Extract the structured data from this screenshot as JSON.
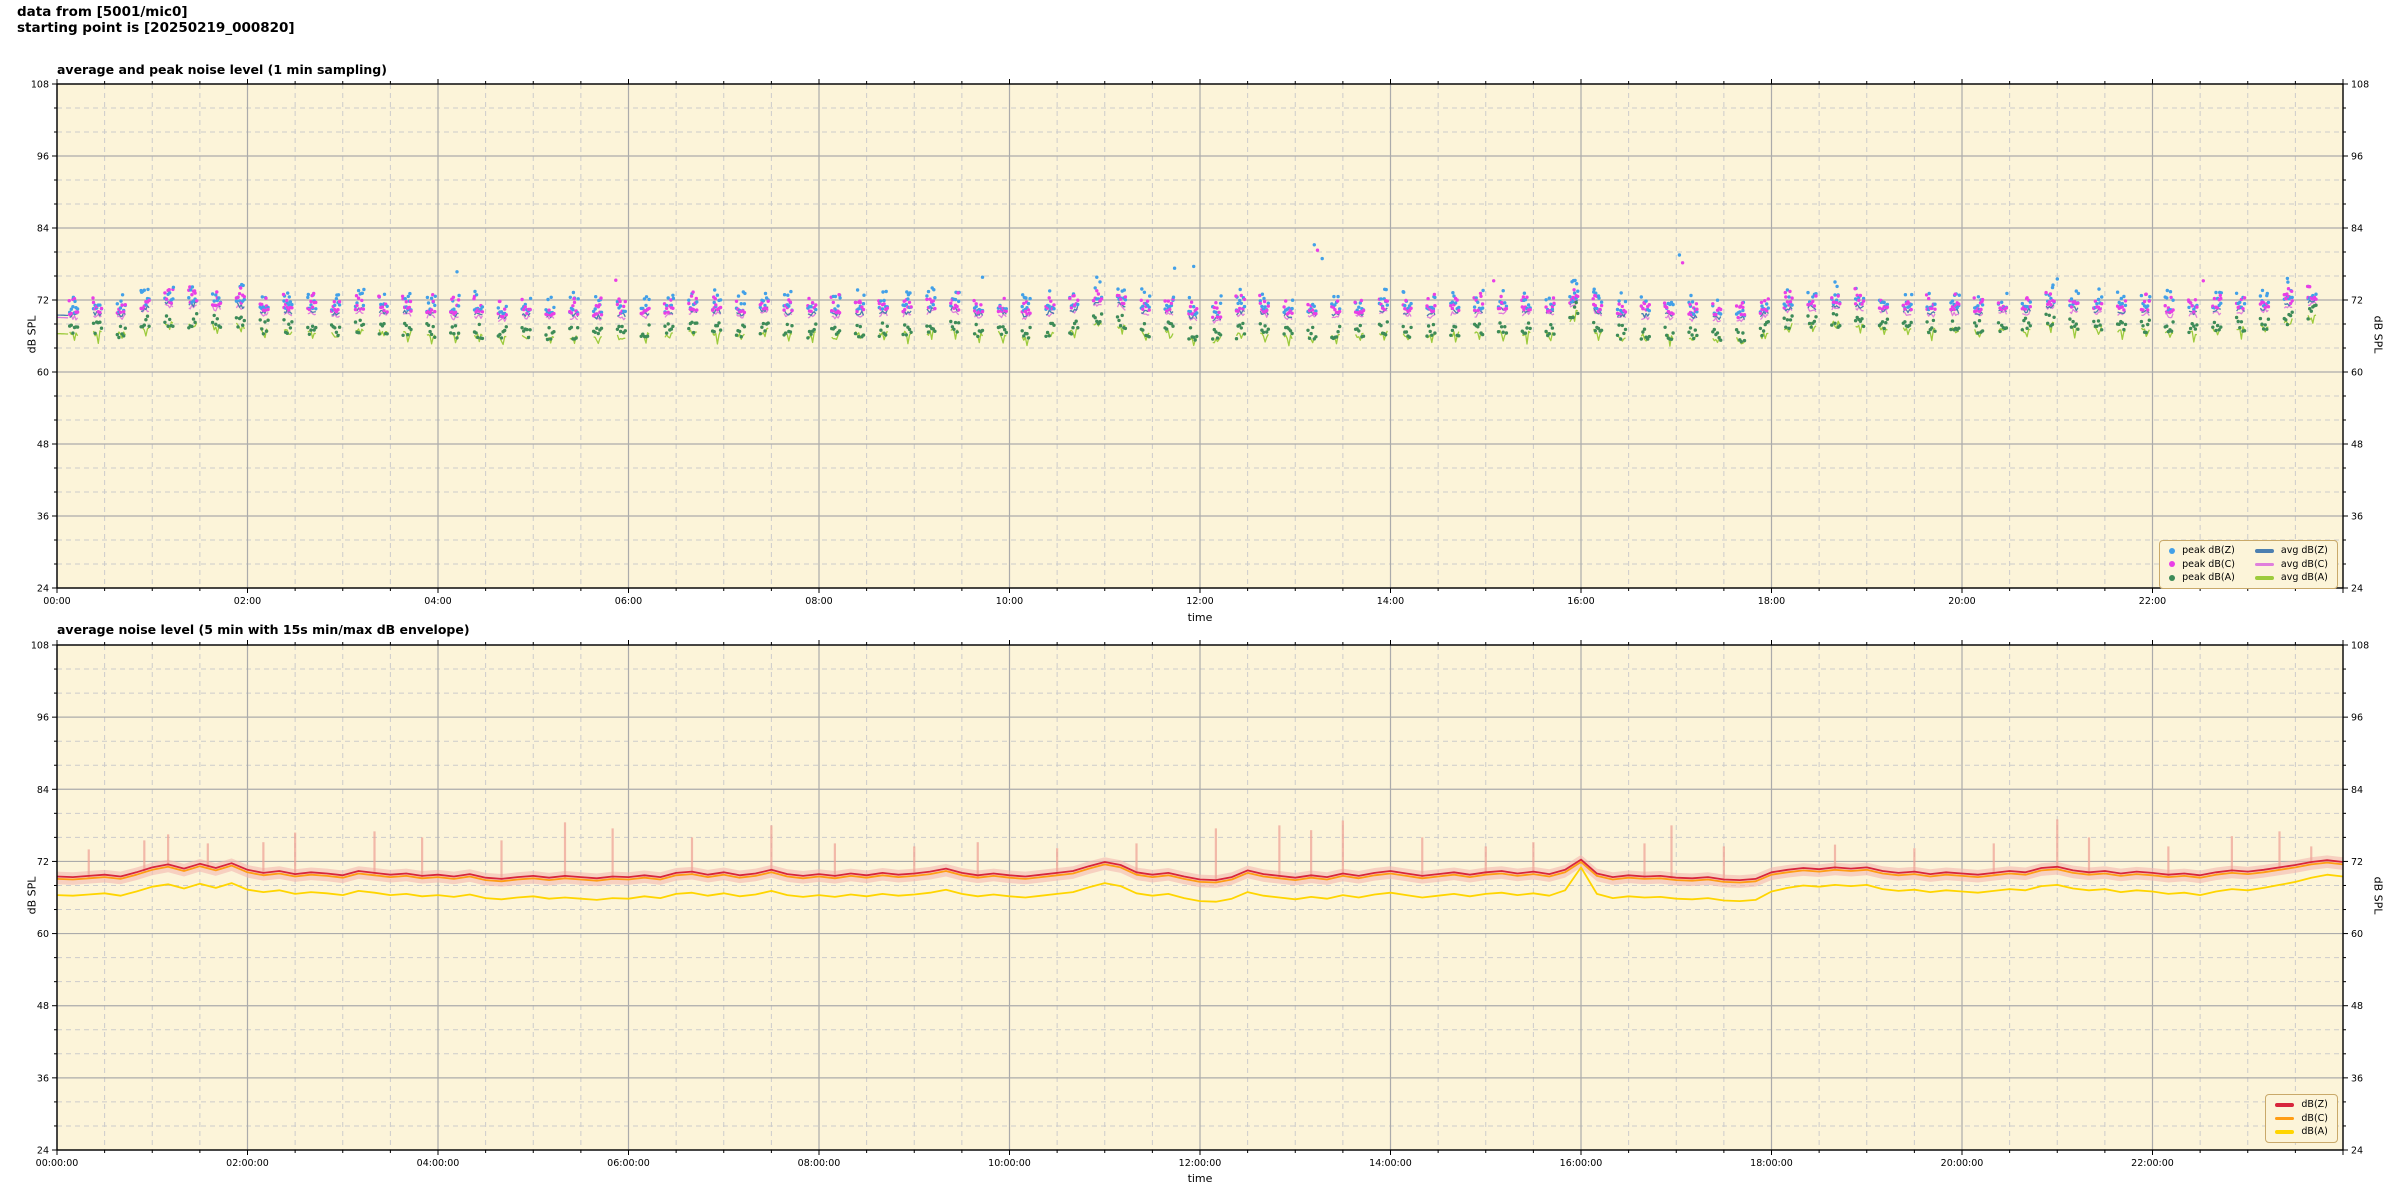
{
  "page": {
    "header_line1": "data from [5001/mic0]",
    "header_line2": "starting point is [20250219_000820]"
  },
  "style": {
    "plot_bg": "#FCF4D9",
    "grid_major": "#ABABAB",
    "grid_minor": "#CBCBCB",
    "spine": "#000000",
    "legend_bg": "#FCF4D9",
    "legend_border": "#C9A96A"
  },
  "chart_data": [
    {
      "type": "scatter",
      "title": "average and peak noise level (1 min sampling)",
      "xlabel": "time",
      "ylabel_left": "dB SPL",
      "ylabel_right": "dB SPL",
      "ylim": [
        24,
        108
      ],
      "yticks": [
        24,
        36,
        48,
        60,
        72,
        84,
        96,
        108
      ],
      "yminor_step": 4,
      "xlim_minutes": [
        0,
        1440
      ],
      "xtick_minutes": [
        0,
        120,
        240,
        360,
        480,
        600,
        720,
        840,
        960,
        1080,
        1200,
        1320
      ],
      "xticklabels": [
        "00:00",
        "02:00",
        "04:00",
        "06:00",
        "08:00",
        "10:00",
        "12:00",
        "14:00",
        "16:00",
        "18:00",
        "20:00",
        "22:00"
      ],
      "xminor_step_minutes": 30,
      "grid": true,
      "legend": {
        "position": "lower right",
        "columns": 2,
        "entries": [
          {
            "label": "peak dB(Z)",
            "marker": "dot",
            "color": "#42A0E8"
          },
          {
            "label": "peak dB(C)",
            "marker": "dot",
            "color": "#E93FE6"
          },
          {
            "label": "peak dB(A)",
            "marker": "dot",
            "color": "#3D8B58"
          },
          {
            "label": "avg dB(Z)",
            "marker": "line",
            "color": "#4C7FB0"
          },
          {
            "label": "avg dB(C)",
            "marker": "line",
            "color": "#E07FDC"
          },
          {
            "label": "avg dB(A)",
            "marker": "line",
            "color": "#9DCB3D"
          }
        ]
      },
      "sampling": {
        "cluster_start_minute": 8,
        "cluster_interval_minutes": 15,
        "samples_per_cluster": 6,
        "sample_step_minutes": 1
      },
      "peak_band_db": {
        "zc_above_avg": [
          0.3,
          3.6
        ],
        "a_about_avg": [
          -0.6,
          2.2
        ]
      },
      "peak_outliers": [
        [
          252,
          76.7,
          "Z"
        ],
        [
          352,
          75.3,
          "C"
        ],
        [
          583,
          75.8,
          "Z"
        ],
        [
          655,
          75.8,
          "Z"
        ],
        [
          704,
          77.3,
          "Z"
        ],
        [
          716,
          77.6,
          "Z"
        ],
        [
          792,
          81.2,
          "Z"
        ],
        [
          794,
          80.3,
          "C"
        ],
        [
          797,
          78.9,
          "Z"
        ],
        [
          905,
          75.2,
          "C"
        ],
        [
          1022,
          79.5,
          "Z"
        ],
        [
          1024,
          78.2,
          "C"
        ],
        [
          1120,
          75.0,
          "Z"
        ],
        [
          1260,
          75.5,
          "Z"
        ],
        [
          1352,
          75.2,
          "C"
        ],
        [
          1405,
          75.6,
          "Z"
        ]
      ]
    },
    {
      "type": "line",
      "title": "average noise level (5 min with 15s min/max dB envelope)",
      "xlabel": "time",
      "ylabel_left": "dB SPL",
      "ylabel_right": "dB SPL",
      "ylim": [
        24,
        108
      ],
      "yticks": [
        24,
        36,
        48,
        60,
        72,
        84,
        96,
        108
      ],
      "yminor_step": 4,
      "xlim_minutes": [
        0,
        1440
      ],
      "xtick_minutes": [
        0,
        120,
        240,
        360,
        480,
        600,
        720,
        840,
        960,
        1080,
        1200,
        1320
      ],
      "xticklabels": [
        "00:00:00",
        "02:00:00",
        "04:00:00",
        "06:00:00",
        "08:00:00",
        "10:00:00",
        "12:00:00",
        "14:00:00",
        "16:00:00",
        "18:00:00",
        "20:00:00",
        "22:00:00"
      ],
      "xminor_step_minutes": 30,
      "grid": true,
      "sample_step_minutes": 10,
      "legend": {
        "position": "lower right",
        "columns": 1,
        "entries": [
          {
            "label": "dB(Z)",
            "marker": "line",
            "color": "#D7263D"
          },
          {
            "label": "dB(C)",
            "marker": "line",
            "color": "#FF9D14"
          },
          {
            "label": "dB(A)",
            "marker": "line",
            "color": "#FFD500"
          }
        ]
      },
      "series": [
        {
          "name": "dB(Z)",
          "color": "#D7263D",
          "values": [
            69.5,
            69.4,
            69.6,
            69.8,
            69.5,
            70.2,
            71.0,
            71.5,
            70.8,
            71.6,
            70.9,
            71.7,
            70.6,
            70.1,
            70.4,
            69.9,
            70.2,
            70.0,
            69.7,
            70.4,
            70.1,
            69.8,
            70.0,
            69.6,
            69.8,
            69.5,
            69.9,
            69.3,
            69.1,
            69.4,
            69.6,
            69.3,
            69.6,
            69.4,
            69.2,
            69.5,
            69.4,
            69.7,
            69.4,
            70.1,
            70.3,
            69.8,
            70.2,
            69.7,
            70.0,
            70.6,
            69.9,
            69.6,
            69.9,
            69.6,
            70.0,
            69.7,
            70.1,
            69.8,
            70.0,
            70.3,
            70.8,
            70.1,
            69.7,
            70.0,
            69.7,
            69.5,
            69.8,
            70.1,
            70.4,
            71.2,
            71.9,
            71.4,
            70.2,
            69.8,
            70.1,
            69.5,
            69.0,
            68.9,
            69.4,
            70.5,
            69.9,
            69.6,
            69.3,
            69.7,
            69.4,
            70.0,
            69.6,
            70.1,
            70.4,
            70.0,
            69.6,
            69.9,
            70.2,
            69.8,
            70.2,
            70.4,
            70.0,
            70.3,
            69.9,
            70.6,
            72.3,
            70.0,
            69.4,
            69.7,
            69.5,
            69.6,
            69.3,
            69.2,
            69.4,
            69.0,
            68.9,
            69.1,
            70.2,
            70.6,
            70.9,
            70.7,
            71.0,
            70.8,
            71.0,
            70.4,
            70.1,
            70.3,
            69.9,
            70.2,
            70.0,
            69.8,
            70.1,
            70.4,
            70.2,
            70.9,
            71.1,
            70.5,
            70.2,
            70.4,
            70.0,
            70.3,
            70.1,
            69.8,
            70.0,
            69.7,
            70.2,
            70.5,
            70.3,
            70.6,
            71.0,
            71.4,
            71.9,
            72.2,
            71.9
          ]
        },
        {
          "name": "dB(C)",
          "color": "#FF9D14",
          "values": [
            69.1,
            69.0,
            69.2,
            69.4,
            69.1,
            69.8,
            70.6,
            71.1,
            70.4,
            71.2,
            70.5,
            71.3,
            70.2,
            69.7,
            70.0,
            69.5,
            69.8,
            69.6,
            69.3,
            70.0,
            69.7,
            69.4,
            69.6,
            69.2,
            69.4,
            69.1,
            69.5,
            68.9,
            68.7,
            69.0,
            69.2,
            68.9,
            69.2,
            69.0,
            68.8,
            69.1,
            69.0,
            69.3,
            69.0,
            69.7,
            69.9,
            69.4,
            69.8,
            69.3,
            69.6,
            70.2,
            69.5,
            69.2,
            69.5,
            69.2,
            69.6,
            69.3,
            69.7,
            69.4,
            69.6,
            69.9,
            70.4,
            69.7,
            69.3,
            69.6,
            69.3,
            69.1,
            69.4,
            69.7,
            70.0,
            70.8,
            71.5,
            71.0,
            69.8,
            69.4,
            69.7,
            69.1,
            68.6,
            68.5,
            69.0,
            70.1,
            69.5,
            69.2,
            68.9,
            69.3,
            69.0,
            69.6,
            69.2,
            69.7,
            70.0,
            69.6,
            69.2,
            69.5,
            69.8,
            69.4,
            69.8,
            70.0,
            69.6,
            69.9,
            69.5,
            70.2,
            71.9,
            69.6,
            69.0,
            69.3,
            69.1,
            69.2,
            68.9,
            68.8,
            69.0,
            68.6,
            68.5,
            68.7,
            69.8,
            70.2,
            70.5,
            70.3,
            70.6,
            70.4,
            70.6,
            70.0,
            69.7,
            69.9,
            69.5,
            69.8,
            69.6,
            69.4,
            69.7,
            70.0,
            69.8,
            70.5,
            70.7,
            70.1,
            69.8,
            70.0,
            69.6,
            69.9,
            69.7,
            69.4,
            69.6,
            69.3,
            69.8,
            70.1,
            69.9,
            70.2,
            70.6,
            71.0,
            71.5,
            71.8,
            71.5
          ]
        },
        {
          "name": "dB(A)",
          "color": "#FFD500",
          "values": [
            66.4,
            66.3,
            66.5,
            66.7,
            66.3,
            67.0,
            67.8,
            68.2,
            67.5,
            68.3,
            67.6,
            68.4,
            67.3,
            66.9,
            67.2,
            66.6,
            66.9,
            66.7,
            66.4,
            67.1,
            66.8,
            66.4,
            66.6,
            66.2,
            66.4,
            66.1,
            66.5,
            65.9,
            65.7,
            66.0,
            66.2,
            65.8,
            66.0,
            65.8,
            65.6,
            65.9,
            65.8,
            66.2,
            65.9,
            66.6,
            66.8,
            66.3,
            66.7,
            66.2,
            66.5,
            67.1,
            66.4,
            66.1,
            66.4,
            66.1,
            66.5,
            66.2,
            66.6,
            66.3,
            66.5,
            66.8,
            67.3,
            66.6,
            66.2,
            66.5,
            66.2,
            66.0,
            66.3,
            66.6,
            66.9,
            67.7,
            68.4,
            67.9,
            66.7,
            66.3,
            66.6,
            65.9,
            65.4,
            65.3,
            65.8,
            66.9,
            66.3,
            66.0,
            65.7,
            66.1,
            65.8,
            66.4,
            66.0,
            66.5,
            66.8,
            66.4,
            66.0,
            66.3,
            66.6,
            66.2,
            66.6,
            66.8,
            66.4,
            66.7,
            66.3,
            67.2,
            71.0,
            66.6,
            65.9,
            66.2,
            66.0,
            66.1,
            65.8,
            65.7,
            65.9,
            65.5,
            65.4,
            65.6,
            67.0,
            67.6,
            68.0,
            67.8,
            68.1,
            67.9,
            68.1,
            67.4,
            67.1,
            67.3,
            66.9,
            67.2,
            67.0,
            66.8,
            67.1,
            67.4,
            67.2,
            67.9,
            68.1,
            67.5,
            67.2,
            67.4,
            66.9,
            67.2,
            67.0,
            66.6,
            66.8,
            66.4,
            67.0,
            67.4,
            67.2,
            67.6,
            68.1,
            68.6,
            69.3,
            69.8,
            69.5
          ]
        }
      ],
      "envelope": {
        "band_color": "#F3B8AF",
        "spike_color": "#EFA497",
        "band_above_db": 0.8,
        "band_below_db": 1.3,
        "spikes": [
          [
            20,
            74.0
          ],
          [
            55,
            75.5
          ],
          [
            70,
            76.5
          ],
          [
            95,
            75.0
          ],
          [
            130,
            75.2
          ],
          [
            150,
            76.8
          ],
          [
            200,
            77.0
          ],
          [
            230,
            76.0
          ],
          [
            280,
            75.5
          ],
          [
            320,
            78.5
          ],
          [
            350,
            77.5
          ],
          [
            400,
            76.0
          ],
          [
            450,
            78.0
          ],
          [
            490,
            75.0
          ],
          [
            540,
            74.5
          ],
          [
            580,
            75.2
          ],
          [
            630,
            74.2
          ],
          [
            680,
            75.0
          ],
          [
            730,
            77.5
          ],
          [
            770,
            78.0
          ],
          [
            790,
            77.2
          ],
          [
            810,
            78.8
          ],
          [
            860,
            76.0
          ],
          [
            900,
            74.5
          ],
          [
            930,
            75.2
          ],
          [
            1000,
            75.0
          ],
          [
            1017,
            78.0
          ],
          [
            1050,
            74.5
          ],
          [
            1120,
            74.8
          ],
          [
            1170,
            74.2
          ],
          [
            1220,
            75.0
          ],
          [
            1260,
            79.0
          ],
          [
            1280,
            76.0
          ],
          [
            1330,
            74.5
          ],
          [
            1370,
            76.2
          ],
          [
            1400,
            77.0
          ],
          [
            1420,
            74.5
          ]
        ]
      }
    }
  ]
}
